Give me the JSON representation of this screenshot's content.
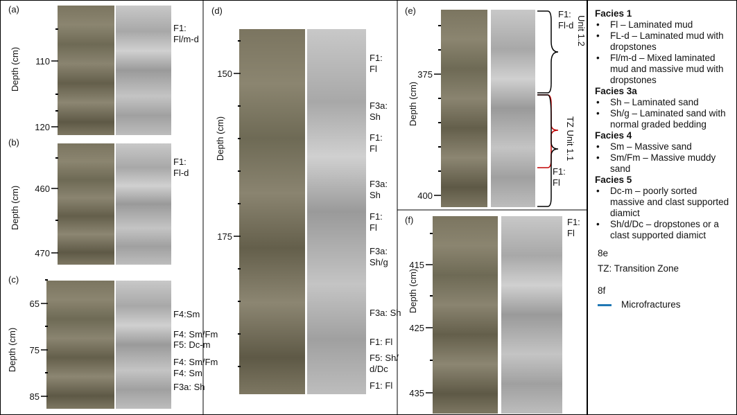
{
  "panels": [
    {
      "label": "(a)",
      "depth_label": "Depth (cm)",
      "ticks": [
        110,
        120
      ],
      "facies": [
        [
          "F1:",
          "Fl/m-d"
        ]
      ]
    },
    {
      "label": "(b)",
      "depth_label": "Depth (cm)",
      "ticks": [
        460,
        470
      ],
      "facies": [
        [
          "F1:",
          "Fl-d"
        ]
      ]
    },
    {
      "label": "(c)",
      "depth_label": "Depth (cm)",
      "ticks": [
        65,
        75,
        85
      ],
      "facies": [
        [
          "F4:Sm"
        ],
        [
          "F4: Sm/Fm"
        ],
        [
          "F5: Dc-m"
        ],
        [
          "F4: Sm/Fm"
        ],
        [
          "F4: Sm"
        ],
        [
          "F3a: Sh"
        ]
      ]
    },
    {
      "label": "(d)",
      "depth_label": "Depth (cm)",
      "ticks": [
        150,
        175
      ],
      "facies": [
        [
          "F1:",
          "Fl"
        ],
        [
          "F3a:",
          "Sh"
        ],
        [
          "F1:",
          "Fl"
        ],
        [
          "F3a:",
          "Sh"
        ],
        [
          "F1:",
          "Fl"
        ],
        [
          "F3a:",
          "Sh/g"
        ],
        [
          "F3a: Sh"
        ],
        [
          "F1: Fl"
        ],
        [
          "F5: Sh/",
          "d/Dc"
        ],
        [
          "F1: Fl"
        ]
      ]
    },
    {
      "label": "(e)",
      "depth_label": "Depth (cm)",
      "ticks": [
        375,
        400
      ],
      "facies": [
        [
          "F1:",
          "Fl-d"
        ],
        [
          "F1:",
          "Fl"
        ]
      ],
      "units": [
        "Unit 1.2",
        "TZ Unit 1.1"
      ]
    },
    {
      "label": "(f)",
      "depth_label": "Depth (cm)",
      "ticks": [
        415,
        425,
        435
      ],
      "facies": [
        [
          "F1:",
          "Fl"
        ]
      ]
    }
  ],
  "legend": {
    "groups": [
      {
        "heading": "Facies 1",
        "items": [
          "Fl – Laminated mud",
          "FL-d – Laminated mud with dropstones",
          "Fl/m-d – Mixed laminated mud and massive mud with dropstones"
        ]
      },
      {
        "heading": "Facies 3a",
        "items": [
          "Sh – Laminated sand",
          "Sh/g – Laminated sand with normal graded bedding"
        ]
      },
      {
        "heading": "Facies 4",
        "items": [
          "Sm – Massive sand",
          "Sm/Fm – Massive muddy sand"
        ]
      },
      {
        "heading": "Facies 5",
        "items": [
          "Dc-m – poorly sorted massive and clast supported diamict",
          "Sh/d/Dc – dropstones or a clast supported diamict"
        ]
      }
    ],
    "notes": [
      "8e",
      "TZ: Transition Zone",
      "8f"
    ],
    "key": "Microfractures"
  }
}
